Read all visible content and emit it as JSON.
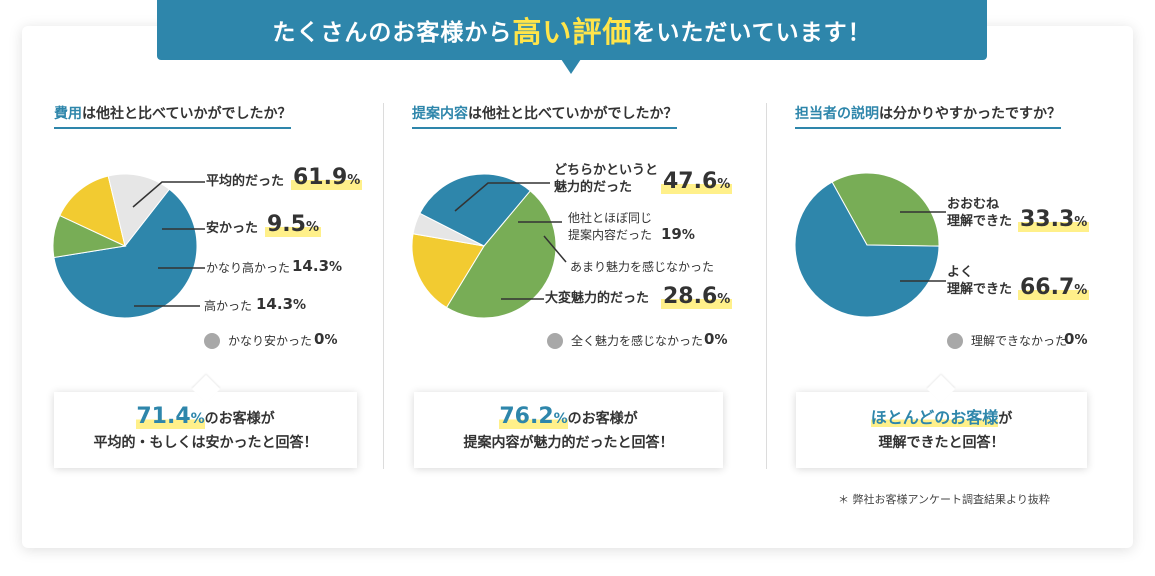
{
  "banner": {
    "pre": "たくさんのお客様から",
    "highlight": "高い評価",
    "post": "をいただいています！"
  },
  "colors": {
    "blue": "#2e86ab",
    "green": "#78ad56",
    "yellow": "#f2cb31",
    "gray": "#e6e6e6",
    "dot": "#a8a8a8",
    "highlight": "#fff08a"
  },
  "panels": [
    {
      "question_highlight": "費用",
      "question_rest": "は他社と比べていかがでしたか？",
      "summary_value": "71.4",
      "summary_unit": "%",
      "summary_line1_rest": "のお客様が",
      "summary_line2": "平均的・もしくは安かったと回答！"
    },
    {
      "question_highlight": "提案内容",
      "question_rest": "は他社と比べていかがでしたか？",
      "summary_value": "76.2",
      "summary_unit": "%",
      "summary_line1_rest": "のお客様が",
      "summary_line2": "提案内容が魅力的だったと回答！"
    },
    {
      "question_highlight": "担当者の説明",
      "question_rest": "は分かりやすかったですか？",
      "summary_highlight": "ほとんどのお客様",
      "summary_line1_rest": "が",
      "summary_line2": "理解できたと回答！"
    }
  ],
  "chart_data": [
    {
      "type": "pie",
      "title": "費用は他社と比べていかがでしたか？",
      "slices": [
        {
          "label": "平均的だった",
          "value": 61.9,
          "color": "#2e86ab"
        },
        {
          "label": "安かった",
          "value": 9.5,
          "color": "#78ad56"
        },
        {
          "label": "かなり高かった",
          "value": 14.3,
          "color": "#f2cb31"
        },
        {
          "label": "高かった",
          "value": 14.3,
          "color": "#e6e6e6"
        },
        {
          "label": "かなり安かった",
          "value": 0,
          "color": "#a8a8a8"
        }
      ]
    },
    {
      "type": "pie",
      "title": "提案内容は他社と比べていかがでしたか？",
      "slices": [
        {
          "label": "どちらかというと魅力的だった",
          "value": 47.6,
          "color": "#78ad56"
        },
        {
          "label": "他社とほぼ同じ提案内容だった",
          "value": 19,
          "color": "#f2cb31"
        },
        {
          "label": "あまり魅力を感じなかった",
          "value": 4.8,
          "color": "#e6e6e6"
        },
        {
          "label": "大変魅力的だった",
          "value": 28.6,
          "color": "#2e86ab"
        },
        {
          "label": "全く魅力を感じなかった",
          "value": 0,
          "color": "#a8a8a8"
        }
      ]
    },
    {
      "type": "pie",
      "title": "担当者の説明は分かりやすかったですか？",
      "slices": [
        {
          "label": "おおむね理解できた",
          "value": 33.3,
          "color": "#78ad56"
        },
        {
          "label": "よく理解できた",
          "value": 66.7,
          "color": "#2e86ab"
        },
        {
          "label": "理解できなかった",
          "value": 0,
          "color": "#a8a8a8"
        }
      ]
    }
  ],
  "labels": {
    "p1": {
      "avg": "平均的だった",
      "avg_v": "61.9",
      "cheap": "安かった",
      "cheap_v": "9.5",
      "vhigh": "かなり高かった",
      "vhigh_v": "14.3",
      "high": "高かった",
      "high_v": "14.3",
      "vcheap": "かなり安かった",
      "vcheap_v": "0"
    },
    "p2": {
      "some_l1": "どちらかというと",
      "some_l2": "魅力的だった",
      "some_v": "47.6",
      "same_l1": "他社とほぼ同じ",
      "same_l2": "提案内容だった",
      "same_v": "19",
      "little": "あまり魅力を感じなかった",
      "very": "大変魅力的だった",
      "very_v": "28.6",
      "none": "全く魅力を感じなかった",
      "none_v": "0"
    },
    "p3": {
      "mostly_l1": "おおむね",
      "mostly_l2": "理解できた",
      "mostly_v": "33.3",
      "well_l1": "よく",
      "well_l2": "理解できた",
      "well_v": "66.7",
      "not": "理解できなかった",
      "not_v": "0"
    },
    "pct": "%"
  },
  "footnote": "＊ 弊社お客様アンケート調査結果より抜粋"
}
